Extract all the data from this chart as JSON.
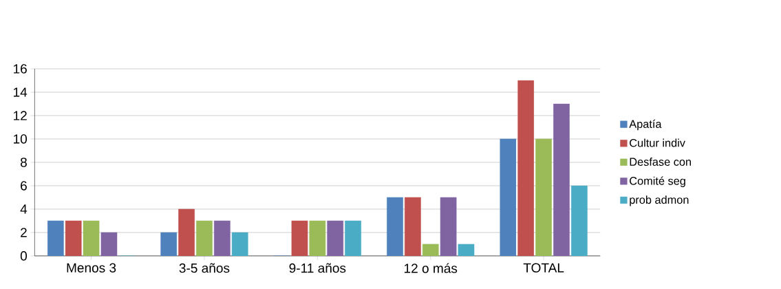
{
  "chart_data": {
    "type": "bar",
    "categories": [
      "Menos 3",
      "3-5 años",
      "9-11 años",
      "12 o más",
      "TOTAL"
    ],
    "series": [
      {
        "name": "Apatía",
        "color": "#4f81bd",
        "values": [
          3,
          2,
          0,
          5,
          10
        ]
      },
      {
        "name": "Cultur indiv",
        "color": "#c0504d",
        "values": [
          3,
          4,
          3,
          5,
          15
        ]
      },
      {
        "name": "Desfase con",
        "color": "#9bbb59",
        "values": [
          3,
          3,
          3,
          1,
          10
        ]
      },
      {
        "name": "Comité seg",
        "color": "#8064a2",
        "values": [
          2,
          3,
          3,
          5,
          13
        ]
      },
      {
        "name": "prob admon",
        "color": "#4bacc6",
        "values": [
          0,
          2,
          3,
          1,
          6
        ]
      }
    ],
    "ylim": [
      0,
      16
    ],
    "yticks": [
      0,
      2,
      4,
      6,
      8,
      10,
      12,
      14,
      16
    ],
    "grid": "y",
    "legend": "right"
  }
}
